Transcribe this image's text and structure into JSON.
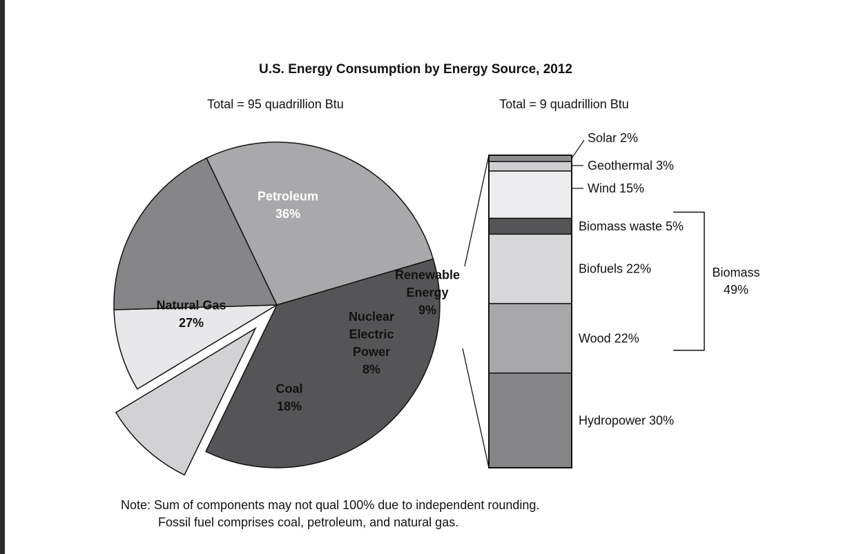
{
  "chart_data": {
    "type": "pie",
    "title": "U.S. Energy Consumption by Energy Source, 2012",
    "pie": {
      "total_label": "Total = 95 quadrillion Btu",
      "slices": [
        {
          "name": "Petroleum",
          "label_lines": [
            "Petroleum",
            "36%"
          ],
          "value": 36,
          "color": "#555557",
          "text_color": "#ffffff"
        },
        {
          "name": "Renewable Energy",
          "label_lines": [
            "Renewable",
            "Energy",
            "9%"
          ],
          "value": 9,
          "color": "#d2d2d4",
          "text_color": "#111111",
          "exploded": true
        },
        {
          "name": "Nuclear Electric Power",
          "label_lines": [
            "Nuclear",
            "Electric",
            "Power",
            "8%"
          ],
          "value": 8,
          "color": "#e8e8ea",
          "text_color": "#111111"
        },
        {
          "name": "Coal",
          "label_lines": [
            "Coal",
            "18%"
          ],
          "value": 18,
          "color": "#868688",
          "text_color": "#111111"
        },
        {
          "name": "Natural Gas",
          "label_lines": [
            "Natural Gas",
            "27%"
          ],
          "value": 27,
          "color": "#a9a9ab",
          "text_color": "#111111"
        }
      ]
    },
    "renewable_breakdown": {
      "total_label": "Total = 9 quadrillion Btu",
      "components": [
        {
          "name": "Solar",
          "label": "Solar 2%",
          "value": 2,
          "color": "#8f8f91"
        },
        {
          "name": "Geothermal",
          "label": "Geothermal 3%",
          "value": 3,
          "color": "#cfcfd1"
        },
        {
          "name": "Wind",
          "label": "Wind 15%",
          "value": 15,
          "color": "#ececee"
        },
        {
          "name": "Biomass waste",
          "label": "Biomass waste 5%",
          "value": 5,
          "color": "#555557"
        },
        {
          "name": "Biofuels",
          "label": "Biofuels 22%",
          "value": 22,
          "color": "#d8d8da"
        },
        {
          "name": "Wood",
          "label": "Wood 22%",
          "value": 22,
          "color": "#a8a8aa"
        },
        {
          "name": "Hydropower",
          "label": "Hydropower 30%",
          "value": 30,
          "color": "#858587"
        }
      ],
      "group": {
        "name": "Biomass",
        "label_lines": [
          "Biomass",
          "49%"
        ],
        "value": 49,
        "members": [
          "Biomass waste",
          "Biofuels",
          "Wood"
        ]
      }
    },
    "notes": [
      "Note: Sum of components may not qual 100% due to independent rounding.",
      "Fossil fuel comprises coal, petroleum, and natural gas."
    ]
  }
}
